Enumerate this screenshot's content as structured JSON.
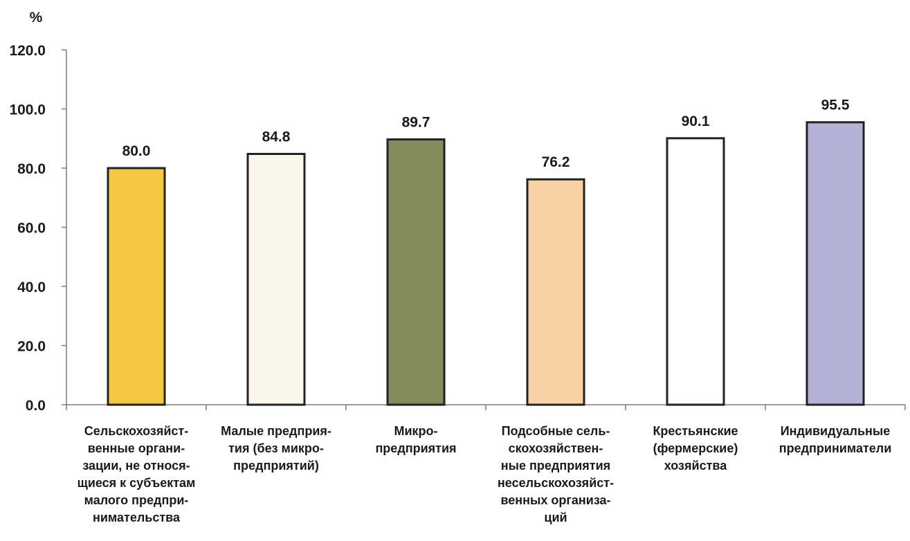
{
  "chart_data": {
    "type": "bar",
    "unit": "%",
    "categories": [
      "Сельскохозяйст-\nвенные органи-\nзации, не относя-\nщиеся к субъектам\nмалого предпри-\nнимательства",
      "Малые предприя-\nтия (без микро-\nпредприятий)",
      "Микро-\nпредприятия",
      "Подсобные сель-\nскохозяйствен-\nные предприятия\nнесельскохозяйст-\nвенных организа-\nций",
      "Крестьянские\n(фермерские)\nхозяйства",
      "Индивидуальные\nпредприниматели"
    ],
    "values": [
      80.0,
      84.8,
      89.7,
      76.2,
      90.1,
      95.5
    ],
    "value_labels": [
      "80.0",
      "84.8",
      "89.7",
      "76.2",
      "90.1",
      "95.5"
    ],
    "colors": [
      "#f5c842",
      "#fbf6ea",
      "#858c5c",
      "#f8d2a4",
      "#ffffff",
      "#b4b1d6"
    ],
    "ylim": [
      0,
      120
    ],
    "yticks": [
      "0.0",
      "20.0",
      "40.0",
      "60.0",
      "80.0",
      "100.0",
      "120.0"
    ],
    "grid": false,
    "legend": "none"
  }
}
